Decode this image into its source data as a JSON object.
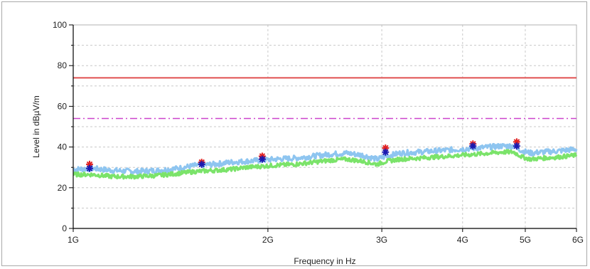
{
  "chart_data": {
    "type": "line",
    "title": "",
    "xlabel": "Frequency in Hz",
    "ylabel": "Level in dBµV/m",
    "x_scale": "log",
    "x_unit": "Hz",
    "xlim": [
      1000000000,
      6000000000
    ],
    "ylim": [
      0,
      100
    ],
    "x_ticks": [
      {
        "value": 1000000000,
        "label": "1G"
      },
      {
        "value": 2000000000,
        "label": "2G"
      },
      {
        "value": 3000000000,
        "label": "3G"
      },
      {
        "value": 4000000000,
        "label": "4G"
      },
      {
        "value": 5000000000,
        "label": "5G"
      },
      {
        "value": 6000000000,
        "label": "6G"
      }
    ],
    "y_ticks": [
      {
        "value": 0,
        "label": "0"
      },
      {
        "value": 20,
        "label": "20"
      },
      {
        "value": 40,
        "label": "40"
      },
      {
        "value": 60,
        "label": "60"
      },
      {
        "value": 80,
        "label": "80"
      },
      {
        "value": 100,
        "label": "100"
      }
    ],
    "grid": true,
    "legend": "none",
    "series": [
      {
        "kind": "limit-line",
        "style": "solid",
        "color": "#e05050",
        "values": [
          [
            1000000000,
            74
          ],
          [
            6000000000,
            74
          ]
        ]
      },
      {
        "kind": "limit-line",
        "style": "dash-dot",
        "color": "#cc44cc",
        "values": [
          [
            1000000000,
            54
          ],
          [
            6000000000,
            54
          ]
        ]
      },
      {
        "kind": "trace",
        "color": "#8ec5f0",
        "values": [
          [
            1000000000,
            29
          ],
          [
            1070000000,
            29.5
          ],
          [
            1150000000,
            28.5
          ],
          [
            1250000000,
            28
          ],
          [
            1350000000,
            28.5
          ],
          [
            1450000000,
            29.5
          ],
          [
            1550000000,
            31
          ],
          [
            1650000000,
            31.5
          ],
          [
            1750000000,
            32.5
          ],
          [
            1850000000,
            33
          ],
          [
            1950000000,
            33.5
          ],
          [
            2050000000,
            34
          ],
          [
            2200000000,
            34.5
          ],
          [
            2350000000,
            35.5
          ],
          [
            2500000000,
            36.5
          ],
          [
            2650000000,
            37
          ],
          [
            2800000000,
            36
          ],
          [
            2950000000,
            34
          ],
          [
            3050000000,
            35.5
          ],
          [
            3200000000,
            37
          ],
          [
            3400000000,
            37.5
          ],
          [
            3600000000,
            38
          ],
          [
            3800000000,
            38.5
          ],
          [
            4000000000,
            39
          ],
          [
            4200000000,
            39.5
          ],
          [
            4400000000,
            40
          ],
          [
            4600000000,
            40.5
          ],
          [
            4800000000,
            40.5
          ],
          [
            4950000000,
            38
          ],
          [
            5100000000,
            37
          ],
          [
            5300000000,
            37.5
          ],
          [
            5600000000,
            38
          ],
          [
            6000000000,
            39
          ]
        ]
      },
      {
        "kind": "trace",
        "color": "#7be36a",
        "values": [
          [
            1000000000,
            26.5
          ],
          [
            1070000000,
            26.5
          ],
          [
            1150000000,
            25.5
          ],
          [
            1250000000,
            25.5
          ],
          [
            1350000000,
            26
          ],
          [
            1450000000,
            27
          ],
          [
            1550000000,
            28
          ],
          [
            1650000000,
            28.5
          ],
          [
            1750000000,
            29
          ],
          [
            1850000000,
            30
          ],
          [
            1950000000,
            30.5
          ],
          [
            2050000000,
            31
          ],
          [
            2200000000,
            31.5
          ],
          [
            2350000000,
            32.5
          ],
          [
            2500000000,
            33.5
          ],
          [
            2650000000,
            34
          ],
          [
            2800000000,
            33
          ],
          [
            2950000000,
            31.5
          ],
          [
            3050000000,
            33
          ],
          [
            3200000000,
            34
          ],
          [
            3400000000,
            34.5
          ],
          [
            3600000000,
            35
          ],
          [
            3800000000,
            35.5
          ],
          [
            4000000000,
            36
          ],
          [
            4200000000,
            36.5
          ],
          [
            4400000000,
            37
          ],
          [
            4600000000,
            37.5
          ],
          [
            4800000000,
            37.5
          ],
          [
            4950000000,
            35
          ],
          [
            5100000000,
            34
          ],
          [
            5300000000,
            34.5
          ],
          [
            5600000000,
            35
          ],
          [
            6000000000,
            36
          ]
        ]
      },
      {
        "kind": "markers",
        "marker": "star",
        "color": "#e02020",
        "values": [
          [
            1060000000,
            31.5
          ],
          [
            1580000000,
            32.5
          ],
          [
            1960000000,
            35.5
          ],
          [
            3040000000,
            39.5
          ],
          [
            4150000000,
            41.5
          ],
          [
            4850000000,
            42.5
          ]
        ]
      },
      {
        "kind": "markers",
        "marker": "star",
        "color": "#1a1ab0",
        "values": [
          [
            1060000000,
            29.5
          ],
          [
            1580000000,
            31.5
          ],
          [
            1960000000,
            34
          ],
          [
            3040000000,
            37.5
          ],
          [
            4150000000,
            40.5
          ],
          [
            4850000000,
            40.5
          ]
        ]
      }
    ]
  }
}
